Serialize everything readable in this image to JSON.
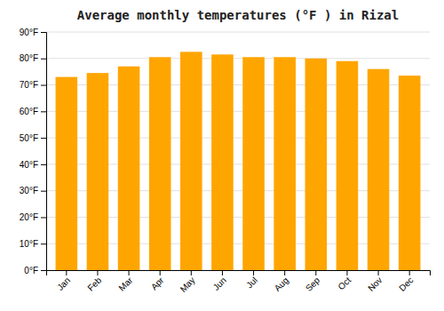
{
  "chart_data": {
    "type": "bar",
    "title": "Average monthly temperatures (°F ) in Rizal",
    "categories": [
      "Jan",
      "Feb",
      "Mar",
      "Apr",
      "May",
      "Jun",
      "Jul",
      "Aug",
      "Sep",
      "Oct",
      "Nov",
      "Dec"
    ],
    "values": [
      73,
      74.5,
      77,
      80.5,
      82.5,
      81.5,
      80.5,
      80.5,
      80,
      79,
      76,
      73.5
    ],
    "color": "#FFA500",
    "ylim": [
      0,
      90
    ],
    "yticks": [
      {
        "value": 0,
        "label": "0°F"
      },
      {
        "value": 10,
        "label": "10°F"
      },
      {
        "value": 20,
        "label": "20°F"
      },
      {
        "value": 30,
        "label": "30°F"
      },
      {
        "value": 40,
        "label": "40°F"
      },
      {
        "value": 50,
        "label": "50°F"
      },
      {
        "value": 60,
        "label": "60°F"
      },
      {
        "value": 70,
        "label": "70°F"
      },
      {
        "value": 80,
        "label": "80°F"
      },
      {
        "value": 90,
        "label": "90°F"
      }
    ],
    "grid": true
  }
}
